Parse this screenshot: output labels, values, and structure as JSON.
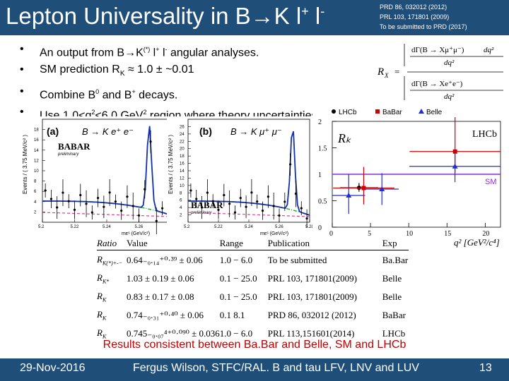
{
  "header": {
    "title_pre": "Lepton Universality in B→K l",
    "title_sup1": "+",
    "title_mid": " l",
    "title_sup2": "-",
    "refs": [
      "PRD 86, 032012 (2012)",
      "PRL 103, 171801 (2009)",
      "To be submitted to PRD (2017)"
    ]
  },
  "bullets": [
    {
      "pre": "An output from B→K",
      "sup1": "(*)",
      "mid1": " l",
      "sup2": "+",
      "mid2": " l",
      "sup3": "-",
      "post": " angular analyses."
    },
    {
      "pre": "SM prediction R",
      "sub": "K",
      "post": " ≈ 1.0 ± ~0.01"
    },
    {
      "pre": "Combine B",
      "sup": "0",
      "mid": " and B",
      "sup2": "+",
      "post": " decays."
    },
    {
      "pre": "Use 1.0<q",
      "sup": "2",
      "mid": "<6.0 GeV",
      "sup2": "2",
      "post": " region where theory uncertainties are lowest."
    }
  ],
  "formula": {
    "lhs": "R",
    "lhs_sub": "X",
    "num": "dΓ(B → Xμ⁺μ⁻)",
    "den": "dΓ(B → Xe⁺e⁻)",
    "dq2": "dq²",
    "q2": "dq²"
  },
  "plots": {
    "a": {
      "label": "(a)",
      "decay": "B → K e⁺ e⁻",
      "logo": "BABAR",
      "sub": "preliminary",
      "ylabel": "Events / ( 3.75 MeV/c² )",
      "xlabel": "mᴇˢ (GeV/c²)",
      "xticks": [
        "5.2",
        "5.22",
        "5.24",
        "5.26",
        "5.28"
      ],
      "yticks": [
        "2",
        "4",
        "6",
        "8",
        "10",
        "12",
        "14",
        "16",
        "18"
      ]
    },
    "b": {
      "label": "(b)",
      "decay": "B → K μ⁺ μ⁻",
      "logo": "BABAR",
      "sub": "preliminary",
      "ylabel": "Events / ( 3.75 MeV/c² )",
      "xlabel": "mᴇˢ (GeV/c²)",
      "xticks": [
        "5.2",
        "5.22",
        "5.24",
        "5.26",
        "5.28"
      ],
      "yticks": [
        "2",
        "4",
        "6",
        "8",
        "10",
        "12",
        "14",
        "16",
        "18",
        "20",
        "22",
        "24",
        "26"
      ]
    }
  },
  "chart_data": {
    "type": "scatter",
    "ylabel": "Rₖ",
    "xlabel": "q² [GeV²/c⁴]",
    "xlim": [
      0,
      22
    ],
    "ylim": [
      0,
      2
    ],
    "xticks": [
      "0",
      "5",
      "10",
      "15",
      "20"
    ],
    "yticks": [
      "0",
      "0.5",
      "1",
      "1.5",
      "2"
    ],
    "annotation_top": "LHCb",
    "sm_label": "SM",
    "sm_value": 1.0,
    "legend": [
      "LHCb",
      "BaBar",
      "Belle"
    ],
    "colors": {
      "LHCb": "#000000",
      "BaBar": "#d00000",
      "Belle": "#2030d0",
      "SM": "#8a2be2"
    },
    "series": [
      {
        "name": "LHCb",
        "points": [
          {
            "x0": 1.0,
            "x1": 6.0,
            "y": 0.745,
            "elo": 0.074,
            "ehi": 0.09
          }
        ]
      },
      {
        "name": "BaBar",
        "points": [
          {
            "x0": 0.1,
            "x1": 8.12,
            "y": 0.74,
            "elo": 0.31,
            "ehi": 0.4
          },
          {
            "x0": 10.11,
            "x1": 22.0,
            "y": 1.43,
            "elo": 0.4,
            "ehi": 0.65
          }
        ]
      },
      {
        "name": "Belle",
        "points": [
          {
            "x0": 0.0,
            "x1": 4.3,
            "y": 0.6,
            "elo": 0.35,
            "ehi": 0.4
          },
          {
            "x0": 4.3,
            "x1": 8.68,
            "y": 0.72,
            "elo": 0.3,
            "ehi": 0.3
          },
          {
            "x0": 10.09,
            "x1": 22.0,
            "y": 1.15,
            "elo": 0.3,
            "ehi": 0.3
          }
        ]
      }
    ]
  },
  "table": {
    "headers": [
      "Ratio",
      "Value",
      "Range",
      "Publication",
      "Exp"
    ],
    "rows": [
      {
        "ratio": "R",
        "ratio_sub": "K(*)+-−",
        "value": "0.64₋₀.₁₄⁺⁰·³⁹ ± 0.06",
        "range": "1.0 − 6.0",
        "pub": "To be submitted",
        "exp": "Ba.Bar"
      },
      {
        "ratio": "R",
        "ratio_sub": "K*",
        "value": "1.03 ± 0.19 ± 0.06",
        "range": "0.1 − 25.0",
        "pub": "PRL 103, 171801(2009)",
        "exp": "Belle"
      },
      {
        "ratio": "R",
        "ratio_sub": "K",
        "value": "0.83 ± 0.17 ± 0.08",
        "range": "0.1 − 25.0",
        "pub": "PRL 103, 171801(2009)",
        "exp": "Belle"
      },
      {
        "ratio": "R",
        "ratio_sub": "K",
        "value": "0.74₋₀.₃₁⁺⁰·⁴⁰ ± 0.06",
        "range": "0.1  8.1",
        "pub": "PRD 86, 032012 (2012)",
        "exp": "BaBar"
      },
      {
        "ratio": "R",
        "ratio_sub": "K",
        "value": "0.745₋₀.₀₇⁴⁺⁰·⁰⁹⁰ ± 0.036",
        "range": "1.0 − 6.0",
        "pub": "PRL 113,151601(2014)",
        "exp": "LHCb"
      }
    ]
  },
  "caption": "Results consistent between Ba.Bar and Belle, SM and LHCb",
  "footer": {
    "date": "29-Nov-2016",
    "author": "Fergus Wilson, STFC/RAL. B and tau LFV, LNV and LUV",
    "page": "13"
  }
}
